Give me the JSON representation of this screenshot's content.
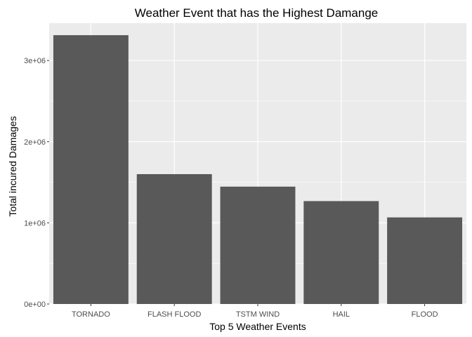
{
  "chart_data": {
    "type": "bar",
    "title": "Weather Event that has the Highest Damange",
    "xlabel": "Top 5 Weather Events",
    "ylabel": "Total incured Damages",
    "categories": [
      "TORNADO",
      "FLASH FLOOD",
      "TSTM WIND",
      "HAIL",
      "FLOOD"
    ],
    "values": [
      3312000,
      1600000,
      1446000,
      1268000,
      1067000
    ],
    "ylim": [
      0,
      3460000
    ],
    "yticks": [
      0,
      1000000,
      2000000,
      3000000
    ],
    "ytick_labels": [
      "0e+00",
      "1e+06",
      "2e+06",
      "3e+06"
    ],
    "grid": true,
    "colors": {
      "panel": "#ebebeb",
      "grid": "#ffffff",
      "bar": "#595959"
    }
  }
}
